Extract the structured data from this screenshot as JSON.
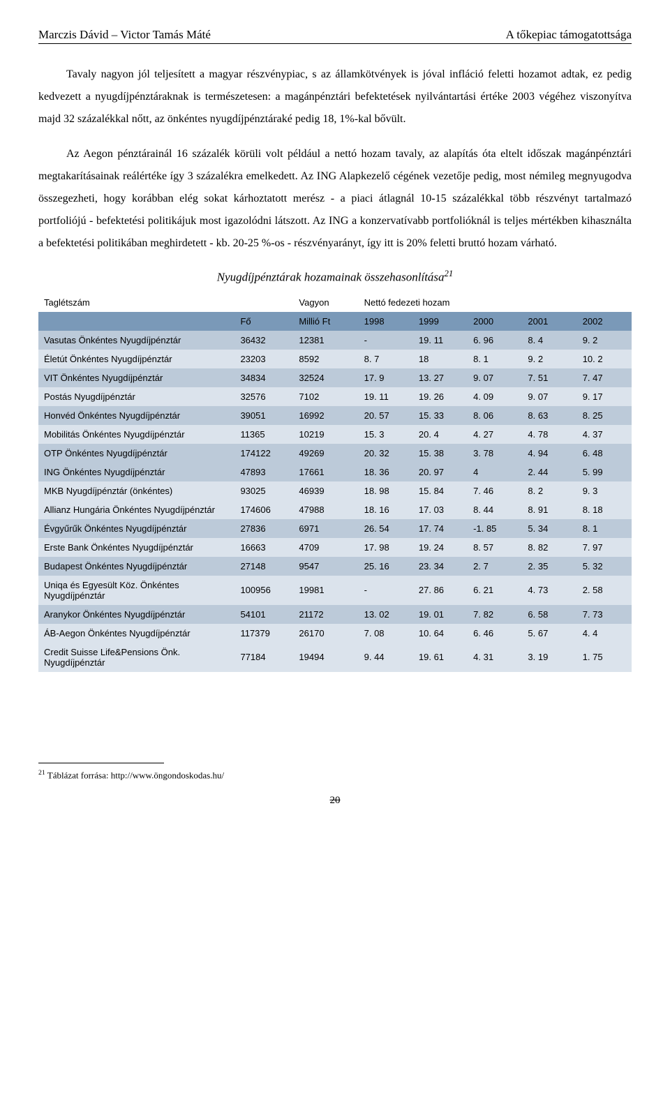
{
  "header": {
    "left": "Marczis Dávid – Victor Tamás Máté",
    "right": "A tőkepiac támogatottsága"
  },
  "paragraphs": {
    "p1": "Tavaly nagyon jól teljesített a magyar részvénypiac, s az államkötvények is jóval infláció feletti hozamot adtak, ez pedig kedvezett a nyugdíjpénztáraknak is természetesen: a magánpénztári befektetések nyilvántartási értéke 2003 végéhez viszonyítva majd 32 százalékkal nőtt, az önkéntes nyugdíjpénztáraké pedig 18, 1%-kal bővült.",
    "p2_a": "Az Aegon pénztárainál 16 százalék körüli volt például a nettó hozam tavaly, az alapítás óta eltelt időszak magánpénztári megtakarításainak reálértéke így 3 százalékra emelkedett. Az ING Alapkezelő cégének vezetője pedig, most némileg megnyugodva összegezheti, hogy korábban elég sokat kárhoztatott merész - a piaci átlagnál 10-15 százalékkal több részvényt tartalmazó portfoliójú - befektetési politikájuk most igazolódni látszott. Az ING a konzervatívabb portfolióknál is teljes mértékben kihasználta a befektetési politikában meghirdetett - kb. 20-25 %-os - részvényarányt, így itt is 20% feletti bruttó hozam várható."
  },
  "tableTitle": "Nyugdíjpénztárak hozamainak összehasonlítása",
  "tableTitleFoot": "21",
  "superHeaders": {
    "tagletszam": "Taglétszám",
    "vagyon": "Vagyon",
    "netto": "Nettó fedezeti hozam"
  },
  "columns": [
    "",
    "Fő",
    "Millió Ft",
    "1998",
    "1999",
    "2000",
    "2001",
    "2002"
  ],
  "rows": [
    [
      "Vasutas Önkéntes Nyugdíjpénztár",
      "36432",
      "12381",
      "-",
      "19. 11",
      "6. 96",
      "8. 4",
      "9. 2"
    ],
    [
      "Életút Önkéntes Nyugdíjpénztár",
      "23203",
      "8592",
      "8. 7",
      "18",
      "8. 1",
      "9. 2",
      "10. 2"
    ],
    [
      "VIT Önkéntes Nyugdíjpénztár",
      "34834",
      "32524",
      "17. 9",
      "13. 27",
      "9. 07",
      "7. 51",
      "7. 47"
    ],
    [
      "Postás Nyugdíjpénztár",
      "32576",
      "7102",
      "19. 11",
      "19. 26",
      "4. 09",
      "9. 07",
      "9. 17"
    ],
    [
      "Honvéd Önkéntes Nyugdíjpénztár",
      "39051",
      "16992",
      "20. 57",
      "15. 33",
      "8. 06",
      "8. 63",
      "8. 25"
    ],
    [
      "Mobilitás Önkéntes Nyugdíjpénztár",
      "11365",
      "10219",
      "15. 3",
      "20. 4",
      "4. 27",
      "4. 78",
      "4. 37"
    ],
    [
      "OTP Önkéntes Nyugdíjpénztár",
      "174122",
      "49269",
      "20. 32",
      "15. 38",
      "3. 78",
      "4. 94",
      "6. 48"
    ],
    [
      "ING Önkéntes Nyugdíjpénztár",
      "47893",
      "17661",
      "18. 36",
      "20. 97",
      "4",
      "2. 44",
      "5. 99"
    ],
    [
      "MKB Nyugdíjpénztár (önkéntes)",
      "93025",
      "46939",
      "18. 98",
      "15. 84",
      "7. 46",
      "8. 2",
      "9. 3"
    ],
    [
      "Allianz Hungária Önkéntes Nyugdíjpénztár",
      "174606",
      "47988",
      "18. 16",
      "17. 03",
      "8. 44",
      "8. 91",
      "8. 18"
    ],
    [
      "Évgyűrűk Önkéntes Nyugdíjpénztár",
      "27836",
      "6971",
      "26. 54",
      "17. 74",
      "-1. 85",
      "5. 34",
      "8. 1"
    ],
    [
      "Erste Bank Önkéntes Nyugdíjpénztár",
      "16663",
      "4709",
      "17. 98",
      "19. 24",
      "8. 57",
      "8. 82",
      "7. 97"
    ],
    [
      "Budapest Önkéntes Nyugdíjpénztár",
      "27148",
      "9547",
      "25. 16",
      "23. 34",
      "2. 7",
      "2. 35",
      "5. 32"
    ],
    [
      "Uniqa és Egyesült Köz. Önkéntes Nyugdíjpénztár",
      "100956",
      "19981",
      "-",
      "27. 86",
      "6. 21",
      "4. 73",
      "2. 58"
    ],
    [
      "Aranykor Önkéntes Nyugdíjpénztár",
      "54101",
      "21172",
      "13. 02",
      "19. 01",
      "7. 82",
      "6. 58",
      "7. 73"
    ],
    [
      "ÁB-Aegon Önkéntes Nyugdíjpénztár",
      "117379",
      "26170",
      "7. 08",
      "10. 64",
      "6. 46",
      "5. 67",
      "4. 4"
    ],
    [
      "Credit Suisse Life&Pensions Önk. Nyugdíjpénztár",
      "77184",
      "19494",
      "9. 44",
      "19. 61",
      "4. 31",
      "3. 19",
      "1. 75"
    ]
  ],
  "rowShades": [
    "dark",
    "light",
    "dark",
    "light",
    "dark",
    "light",
    "dark",
    "dark",
    "light",
    "light",
    "dark",
    "light",
    "dark",
    "light",
    "dark",
    "light",
    "light"
  ],
  "footnote": {
    "num": "21",
    "text": " Táblázat forrása: http://www.öngondoskodas.hu/"
  },
  "pageNumber": "20"
}
